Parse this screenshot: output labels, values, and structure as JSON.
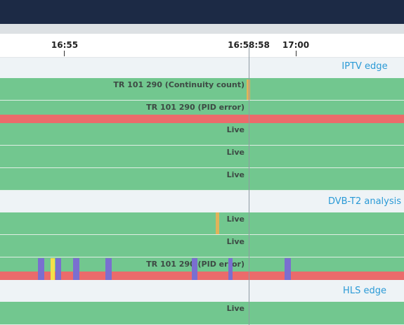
{
  "timeline": {
    "ticks": [
      {
        "label": "16:55"
      },
      {
        "label": "16:58:58"
      },
      {
        "label": "17:00"
      }
    ]
  },
  "groups": [
    {
      "title": "IPTV edge",
      "rows": [
        {
          "label": "TR 101 290 (Continuity count)"
        },
        {
          "label": "TR 101 290 (PID error)"
        },
        {
          "label": "Live"
        },
        {
          "label": "Live"
        },
        {
          "label": "Live"
        }
      ]
    },
    {
      "title": "DVB-T2 analysis",
      "rows": [
        {
          "label": "Live"
        },
        {
          "label": "Live"
        },
        {
          "label": "TR 101 290 (PID error)"
        }
      ]
    },
    {
      "title": "HLS edge",
      "rows": [
        {
          "label": "Live"
        }
      ]
    }
  ],
  "colors": {
    "ok": "#72c78f",
    "error": "#eb6b6b",
    "warning": "#e0b35a",
    "event": "#7a6fd0",
    "highlight": "#f4e04a",
    "group_title": "#2a9ad6",
    "header": "#1c2a45"
  }
}
